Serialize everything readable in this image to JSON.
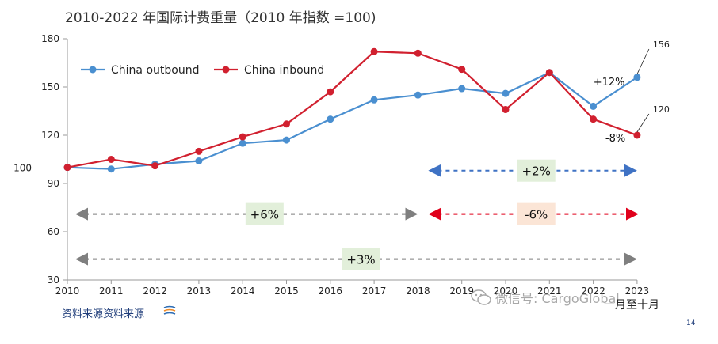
{
  "chart_data": {
    "type": "line",
    "title": "2010-2022 年国际计费重量（2010 年指数 =100)",
    "x": [
      "2010",
      "2011",
      "2012",
      "2013",
      "2014",
      "2015",
      "2016",
      "2017",
      "2018",
      "2019",
      "2020",
      "2021",
      "2022",
      "2023"
    ],
    "series": [
      {
        "name": "China outbound",
        "color": "#4a8fd0",
        "values": [
          100,
          99,
          102,
          104,
          115,
          117,
          130,
          142,
          145,
          149,
          146,
          159,
          138,
          156
        ]
      },
      {
        "name": "China inbound",
        "color": "#d1202f",
        "values": [
          100,
          105,
          101,
          110,
          119,
          127,
          147,
          172,
          171,
          161,
          136,
          159,
          130,
          120
        ]
      }
    ],
    "ylim": [
      30,
      180
    ],
    "yticks": [
      30,
      60,
      90,
      120,
      150,
      180
    ],
    "grid": false,
    "legend": "top-left",
    "extra_label_100": "100",
    "end_labels": {
      "outbound": "156",
      "inbound": "120"
    },
    "pct_labels": {
      "outbound": "+12%",
      "inbound": "-8%"
    },
    "spans": [
      {
        "label": "+2%",
        "from": "2018",
        "to": "2023",
        "level": 98,
        "color": "#3f72c4",
        "box": "#e2efda"
      },
      {
        "label": "+6%",
        "from": "2010",
        "to": "2018",
        "level": 71,
        "color": "#7f7f7f",
        "box": "#e2efda"
      },
      {
        "label": "-6%",
        "from": "2018",
        "to": "2023",
        "level": 71,
        "color": "#e0001b",
        "box": "#fbe5d6"
      },
      {
        "label": "+3%",
        "from": "2010",
        "to": "2023",
        "level": 43,
        "color": "#7f7f7f",
        "box": "#e2efda"
      }
    ]
  },
  "footer": {
    "source": "资料来源资料来源",
    "ytd": "一月至十月",
    "page": "14",
    "watermark": "微信号: CargoGlobal"
  }
}
